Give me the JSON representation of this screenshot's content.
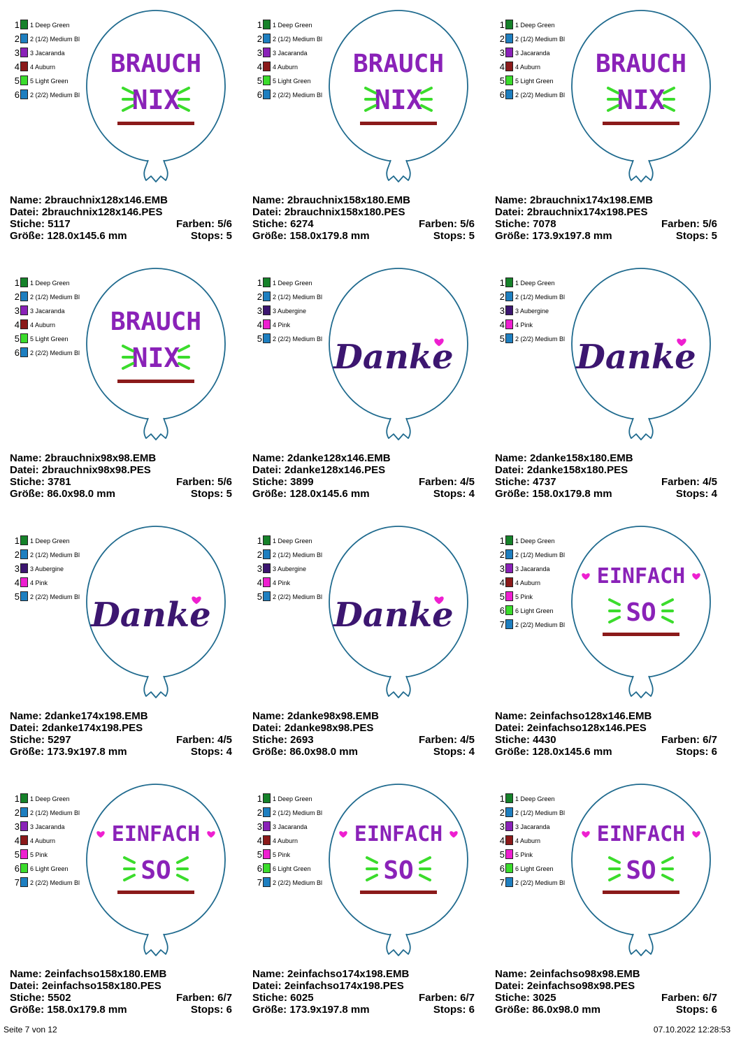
{
  "colors": {
    "Deep Green": "#16822a",
    "Medium Blue": "#1e7fc0",
    "Jacaranda": "#8a22b8",
    "Auburn": "#8b1a1a",
    "Light Green": "#3bdc2c",
    "Aubergine": "#3c1670",
    "Pink": "#ee1fd0",
    "outline": "#1f6a8e"
  },
  "designs": [
    {
      "name": "Name: 2brauchnix128x146.EMB",
      "file": "Datei: 2brauchnix128x146.PES",
      "stitches": "Stiche: 5117",
      "colors_count": "Farben: 5/6",
      "size": "Größe: 128.0x145.6 mm",
      "stops": "Stops: 5",
      "motif": "brauchnix",
      "motif_lines": [
        "BRAUCH",
        "NIX"
      ],
      "legend": [
        {
          "num": "1",
          "name": "1 Deep Green",
          "color": "Deep Green"
        },
        {
          "num": "2",
          "name": "2 (1/2) Medium Bl",
          "color": "Medium Blue"
        },
        {
          "num": "3",
          "name": "3 Jacaranda",
          "color": "Jacaranda"
        },
        {
          "num": "4",
          "name": "4 Auburn",
          "color": "Auburn"
        },
        {
          "num": "5",
          "name": "5 Light Green",
          "color": "Light Green"
        },
        {
          "num": "6",
          "name": "2 (2/2) Medium Bl",
          "color": "Medium Blue"
        }
      ]
    },
    {
      "name": "Name: 2brauchnix158x180.EMB",
      "file": "Datei: 2brauchnix158x180.PES",
      "stitches": "Stiche: 6274",
      "colors_count": "Farben: 5/6",
      "size": "Größe: 158.0x179.8 mm",
      "stops": "Stops: 5",
      "motif": "brauchnix",
      "motif_lines": [
        "BRAUCH",
        "NIX"
      ],
      "legend": [
        {
          "num": "1",
          "name": "1 Deep Green",
          "color": "Deep Green"
        },
        {
          "num": "2",
          "name": "2 (1/2) Medium Bl",
          "color": "Medium Blue"
        },
        {
          "num": "3",
          "name": "3 Jacaranda",
          "color": "Jacaranda"
        },
        {
          "num": "4",
          "name": "4 Auburn",
          "color": "Auburn"
        },
        {
          "num": "5",
          "name": "5 Light Green",
          "color": "Light Green"
        },
        {
          "num": "6",
          "name": "2 (2/2) Medium Bl",
          "color": "Medium Blue"
        }
      ]
    },
    {
      "name": "Name: 2brauchnix174x198.EMB",
      "file": "Datei: 2brauchnix174x198.PES",
      "stitches": "Stiche: 7078",
      "colors_count": "Farben: 5/6",
      "size": "Größe: 173.9x197.8 mm",
      "stops": "Stops: 5",
      "motif": "brauchnix",
      "motif_lines": [
        "BRAUCH",
        "NIX"
      ],
      "legend": [
        {
          "num": "1",
          "name": "1 Deep Green",
          "color": "Deep Green"
        },
        {
          "num": "2",
          "name": "2 (1/2) Medium Bl",
          "color": "Medium Blue"
        },
        {
          "num": "3",
          "name": "3 Jacaranda",
          "color": "Jacaranda"
        },
        {
          "num": "4",
          "name": "4 Auburn",
          "color": "Auburn"
        },
        {
          "num": "5",
          "name": "5 Light Green",
          "color": "Light Green"
        },
        {
          "num": "6",
          "name": "2 (2/2) Medium Bl",
          "color": "Medium Blue"
        }
      ]
    },
    {
      "name": "Name: 2brauchnix98x98.EMB",
      "file": "Datei: 2brauchnix98x98.PES",
      "stitches": "Stiche: 3781",
      "colors_count": "Farben: 5/6",
      "size": "Größe: 86.0x98.0 mm",
      "stops": "Stops: 5",
      "motif": "brauchnix",
      "motif_lines": [
        "BRAUCH",
        "NIX"
      ],
      "legend": [
        {
          "num": "1",
          "name": "1 Deep Green",
          "color": "Deep Green"
        },
        {
          "num": "2",
          "name": "2 (1/2) Medium Bl",
          "color": "Medium Blue"
        },
        {
          "num": "3",
          "name": "3 Jacaranda",
          "color": "Jacaranda"
        },
        {
          "num": "4",
          "name": "4 Auburn",
          "color": "Auburn"
        },
        {
          "num": "5",
          "name": "5 Light Green",
          "color": "Light Green"
        },
        {
          "num": "6",
          "name": "2 (2/2) Medium Bl",
          "color": "Medium Blue"
        }
      ]
    },
    {
      "name": "Name: 2danke128x146.EMB",
      "file": "Datei: 2danke128x146.PES",
      "stitches": "Stiche: 3899",
      "colors_count": "Farben: 4/5",
      "size": "Größe: 128.0x145.6 mm",
      "stops": "Stops: 4",
      "motif": "danke",
      "motif_lines": [
        "Danke"
      ],
      "legend": [
        {
          "num": "1",
          "name": "1 Deep Green",
          "color": "Deep Green"
        },
        {
          "num": "2",
          "name": "2 (1/2) Medium Bl",
          "color": "Medium Blue"
        },
        {
          "num": "3",
          "name": "3 Aubergine",
          "color": "Aubergine"
        },
        {
          "num": "4",
          "name": "4 Pink",
          "color": "Pink"
        },
        {
          "num": "5",
          "name": "2 (2/2) Medium Bl",
          "color": "Medium Blue"
        }
      ]
    },
    {
      "name": "Name: 2danke158x180.EMB",
      "file": "Datei: 2danke158x180.PES",
      "stitches": "Stiche: 4737",
      "colors_count": "Farben: 4/5",
      "size": "Größe: 158.0x179.8 mm",
      "stops": "Stops: 4",
      "motif": "danke",
      "motif_lines": [
        "Danke"
      ],
      "legend": [
        {
          "num": "1",
          "name": "1 Deep Green",
          "color": "Deep Green"
        },
        {
          "num": "2",
          "name": "2 (1/2) Medium Bl",
          "color": "Medium Blue"
        },
        {
          "num": "3",
          "name": "3 Aubergine",
          "color": "Aubergine"
        },
        {
          "num": "4",
          "name": "4 Pink",
          "color": "Pink"
        },
        {
          "num": "5",
          "name": "2 (2/2) Medium Bl",
          "color": "Medium Blue"
        }
      ]
    },
    {
      "name": "Name: 2danke174x198.EMB",
      "file": "Datei: 2danke174x198.PES",
      "stitches": "Stiche: 5297",
      "colors_count": "Farben: 4/5",
      "size": "Größe: 173.9x197.8 mm",
      "stops": "Stops: 4",
      "motif": "danke",
      "motif_lines": [
        "Danke"
      ],
      "legend": [
        {
          "num": "1",
          "name": "1 Deep Green",
          "color": "Deep Green"
        },
        {
          "num": "2",
          "name": "2 (1/2) Medium Bl",
          "color": "Medium Blue"
        },
        {
          "num": "3",
          "name": "3 Aubergine",
          "color": "Aubergine"
        },
        {
          "num": "4",
          "name": "4 Pink",
          "color": "Pink"
        },
        {
          "num": "5",
          "name": "2 (2/2) Medium Bl",
          "color": "Medium Blue"
        }
      ]
    },
    {
      "name": "Name: 2danke98x98.EMB",
      "file": "Datei: 2danke98x98.PES",
      "stitches": "Stiche: 2693",
      "colors_count": "Farben: 4/5",
      "size": "Größe: 86.0x98.0 mm",
      "stops": "Stops: 4",
      "motif": "danke",
      "motif_lines": [
        "Danke"
      ],
      "legend": [
        {
          "num": "1",
          "name": "1 Deep Green",
          "color": "Deep Green"
        },
        {
          "num": "2",
          "name": "2 (1/2) Medium Bl",
          "color": "Medium Blue"
        },
        {
          "num": "3",
          "name": "3 Aubergine",
          "color": "Aubergine"
        },
        {
          "num": "4",
          "name": "4 Pink",
          "color": "Pink"
        },
        {
          "num": "5",
          "name": "2 (2/2) Medium Bl",
          "color": "Medium Blue"
        }
      ]
    },
    {
      "name": "Name: 2einfachso128x146.EMB",
      "file": "Datei: 2einfachso128x146.PES",
      "stitches": "Stiche: 4430",
      "colors_count": "Farben: 6/7",
      "size": "Größe: 128.0x145.6 mm",
      "stops": "Stops: 6",
      "motif": "einfachso",
      "motif_lines": [
        "EINFACH",
        "SO"
      ],
      "legend": [
        {
          "num": "1",
          "name": "1 Deep Green",
          "color": "Deep Green"
        },
        {
          "num": "2",
          "name": "2 (1/2) Medium Bl",
          "color": "Medium Blue"
        },
        {
          "num": "3",
          "name": "3 Jacaranda",
          "color": "Jacaranda"
        },
        {
          "num": "4",
          "name": "4 Auburn",
          "color": "Auburn"
        },
        {
          "num": "5",
          "name": "5 Pink",
          "color": "Pink"
        },
        {
          "num": "6",
          "name": "6 Light Green",
          "color": "Light Green"
        },
        {
          "num": "7",
          "name": "2 (2/2) Medium Bl",
          "color": "Medium Blue"
        }
      ]
    },
    {
      "name": "Name: 2einfachso158x180.EMB",
      "file": "Datei: 2einfachso158x180.PES",
      "stitches": "Stiche: 5502",
      "colors_count": "Farben: 6/7",
      "size": "Größe: 158.0x179.8 mm",
      "stops": "Stops: 6",
      "motif": "einfachso",
      "motif_lines": [
        "EINFACH",
        "SO"
      ],
      "legend": [
        {
          "num": "1",
          "name": "1 Deep Green",
          "color": "Deep Green"
        },
        {
          "num": "2",
          "name": "2 (1/2) Medium Bl",
          "color": "Medium Blue"
        },
        {
          "num": "3",
          "name": "3 Jacaranda",
          "color": "Jacaranda"
        },
        {
          "num": "4",
          "name": "4 Auburn",
          "color": "Auburn"
        },
        {
          "num": "5",
          "name": "5 Pink",
          "color": "Pink"
        },
        {
          "num": "6",
          "name": "6 Light Green",
          "color": "Light Green"
        },
        {
          "num": "7",
          "name": "2 (2/2) Medium Bl",
          "color": "Medium Blue"
        }
      ]
    },
    {
      "name": "Name: 2einfachso174x198.EMB",
      "file": "Datei: 2einfachso174x198.PES",
      "stitches": "Stiche: 6025",
      "colors_count": "Farben: 6/7",
      "size": "Größe: 173.9x197.8 mm",
      "stops": "Stops: 6",
      "motif": "einfachso",
      "motif_lines": [
        "EINFACH",
        "SO"
      ],
      "legend": [
        {
          "num": "1",
          "name": "1 Deep Green",
          "color": "Deep Green"
        },
        {
          "num": "2",
          "name": "2 (1/2) Medium Bl",
          "color": "Medium Blue"
        },
        {
          "num": "3",
          "name": "3 Jacaranda",
          "color": "Jacaranda"
        },
        {
          "num": "4",
          "name": "4 Auburn",
          "color": "Auburn"
        },
        {
          "num": "5",
          "name": "5 Pink",
          "color": "Pink"
        },
        {
          "num": "6",
          "name": "6 Light Green",
          "color": "Light Green"
        },
        {
          "num": "7",
          "name": "2 (2/2) Medium Bl",
          "color": "Medium Blue"
        }
      ]
    },
    {
      "name": "Name: 2einfachso98x98.EMB",
      "file": "Datei: 2einfachso98x98.PES",
      "stitches": "Stiche: 3025",
      "colors_count": "Farben: 6/7",
      "size": "Größe: 86.0x98.0 mm",
      "stops": "Stops: 6",
      "motif": "einfachso",
      "motif_lines": [
        "EINFACH",
        "SO"
      ],
      "legend": [
        {
          "num": "1",
          "name": "1 Deep Green",
          "color": "Deep Green"
        },
        {
          "num": "2",
          "name": "2 (1/2) Medium Bl",
          "color": "Medium Blue"
        },
        {
          "num": "3",
          "name": "3 Jacaranda",
          "color": "Jacaranda"
        },
        {
          "num": "4",
          "name": "4 Auburn",
          "color": "Auburn"
        },
        {
          "num": "5",
          "name": "5 Pink",
          "color": "Pink"
        },
        {
          "num": "6",
          "name": "6 Light Green",
          "color": "Light Green"
        },
        {
          "num": "7",
          "name": "2 (2/2) Medium Bl",
          "color": "Medium Blue"
        }
      ]
    }
  ],
  "footer": {
    "page": "Seite 7 von 12",
    "timestamp": "07.10.2022 12:28:53"
  }
}
